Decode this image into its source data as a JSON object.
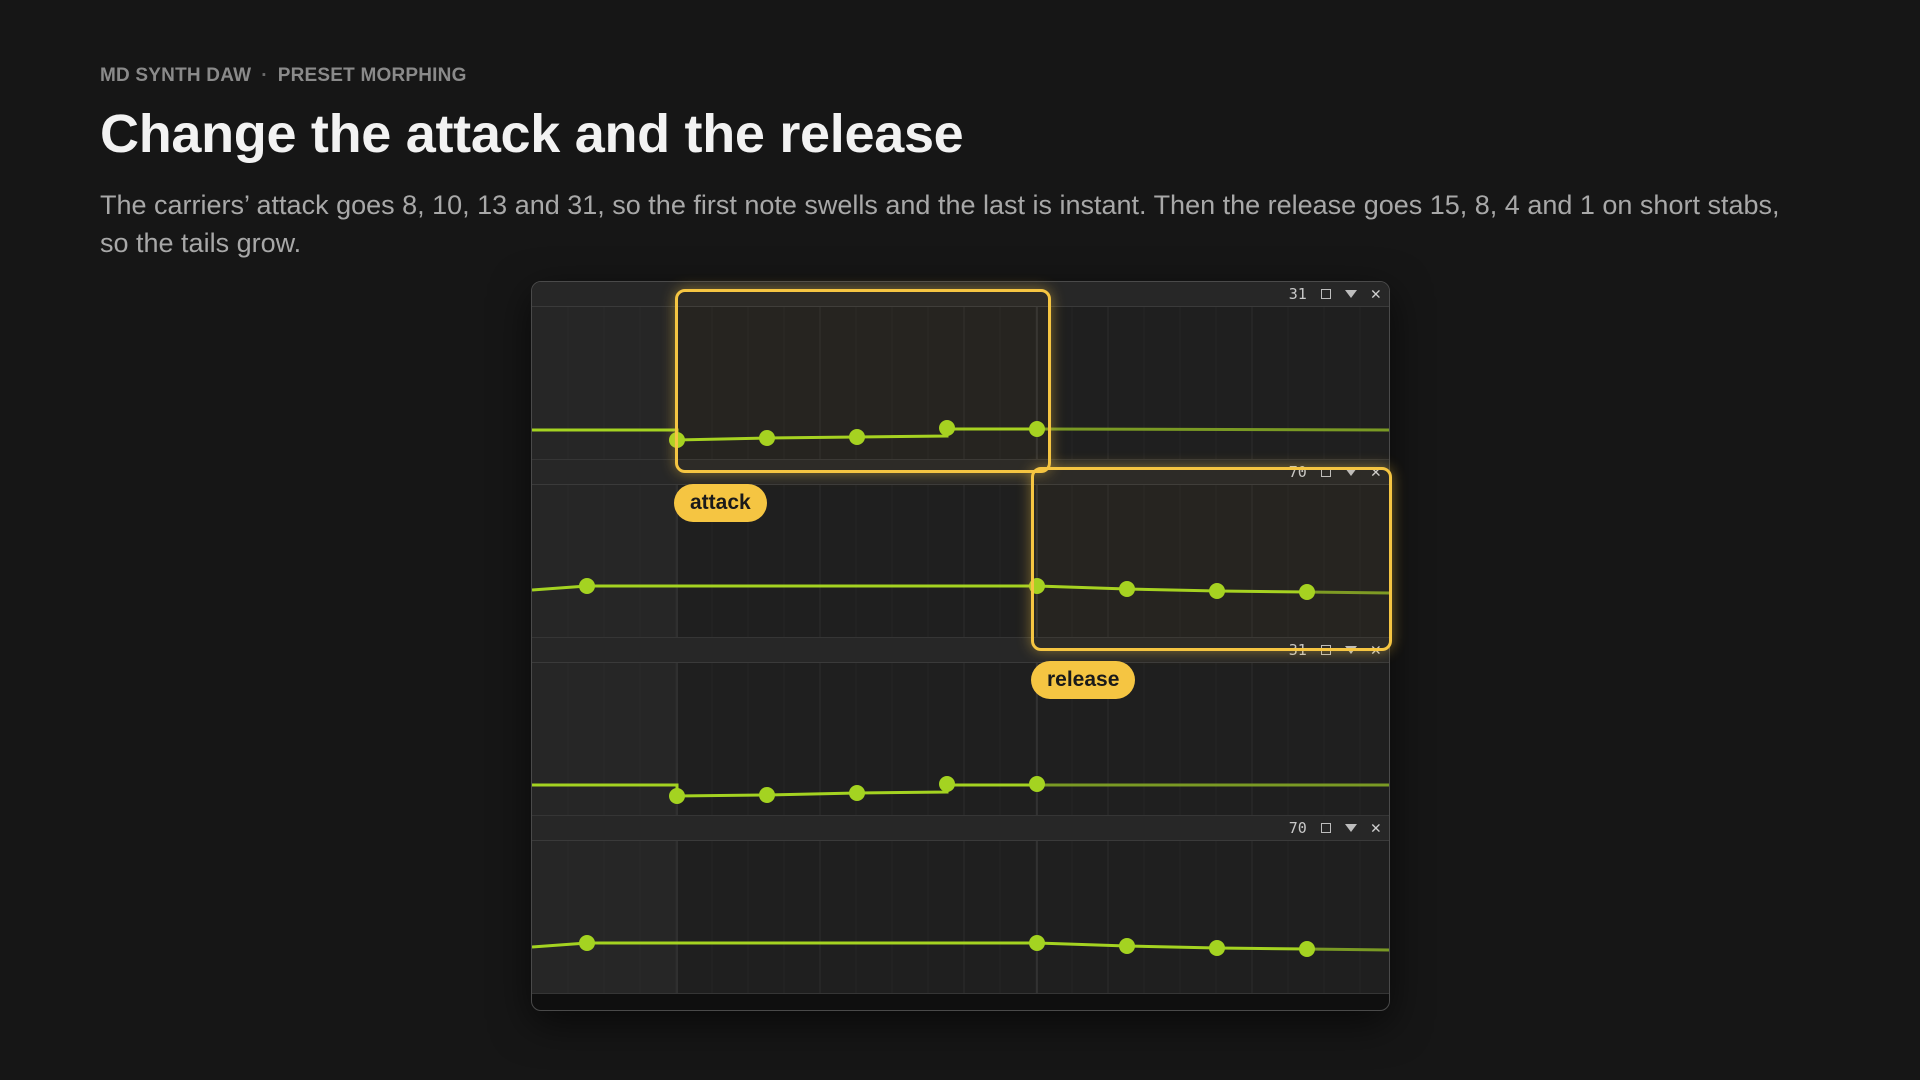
{
  "header": {
    "app_name": "MD SYNTH DAW",
    "separator": "·",
    "section": "PRESET MORPHING",
    "title": "Change the attack and the release",
    "description": "The carriers’ attack goes 8, 10, 13 and 31, so the first note swells and the last is instant. Then the release goes 15, 8, 4 and 1 on short stabs, so the tails grow."
  },
  "lanes": [
    {
      "value": "31",
      "parameter": "attack",
      "points": [
        8,
        10,
        13,
        31
      ]
    },
    {
      "value": "70",
      "parameter": "release",
      "points": [
        15,
        8,
        4,
        1
      ]
    },
    {
      "value": "31",
      "parameter": "attack",
      "points": [
        8,
        10,
        13,
        31
      ]
    },
    {
      "value": "70",
      "parameter": "release",
      "points": [
        15,
        8,
        4,
        1
      ]
    }
  ],
  "icons": [
    "square-icon",
    "dropdown-triangle-icon",
    "close-icon"
  ],
  "callouts": {
    "attack_label": "attack",
    "release_label": "release"
  },
  "colors": {
    "background": "#161616",
    "curve": "#a4d321",
    "highlight": "#f5c542"
  }
}
